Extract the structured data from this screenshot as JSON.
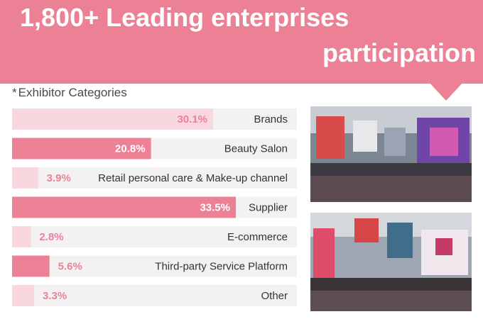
{
  "header": {
    "line1": "1,800+ Leading enterprises",
    "line2": "participation"
  },
  "section": {
    "star": "*",
    "title": "Exhibitor Categories"
  },
  "colors": {
    "accent": "#ec8196",
    "accent_light": "#f8d7de",
    "track": "#f4f1f2"
  },
  "chart_data": {
    "type": "bar",
    "orientation": "horizontal",
    "title": "Exhibitor Categories",
    "value_unit": "%",
    "xlim": [
      0,
      33.5
    ],
    "categories": [
      "Brands",
      "Beauty Salon",
      "Retail personal care & Make-up channel",
      "Supplier",
      "E-commerce",
      "Third-party Service Platform",
      "Other"
    ],
    "values": [
      30.1,
      20.8,
      3.9,
      33.5,
      2.8,
      5.6,
      3.3
    ],
    "value_labels": [
      "30.1%",
      "20.8%",
      "3.9%",
      "33.5%",
      "2.8%",
      "5.6%",
      "3.3%"
    ],
    "bar_colors": [
      "#f8d7de",
      "#ec8196",
      "#f8d7de",
      "#ec8196",
      "#f8d7de",
      "#ec8196",
      "#f8d7de"
    ],
    "grid": false,
    "legend": "none"
  },
  "photos": [
    {
      "icon": "exhibition-hall-photo"
    },
    {
      "icon": "exhibition-hall-photo"
    }
  ]
}
